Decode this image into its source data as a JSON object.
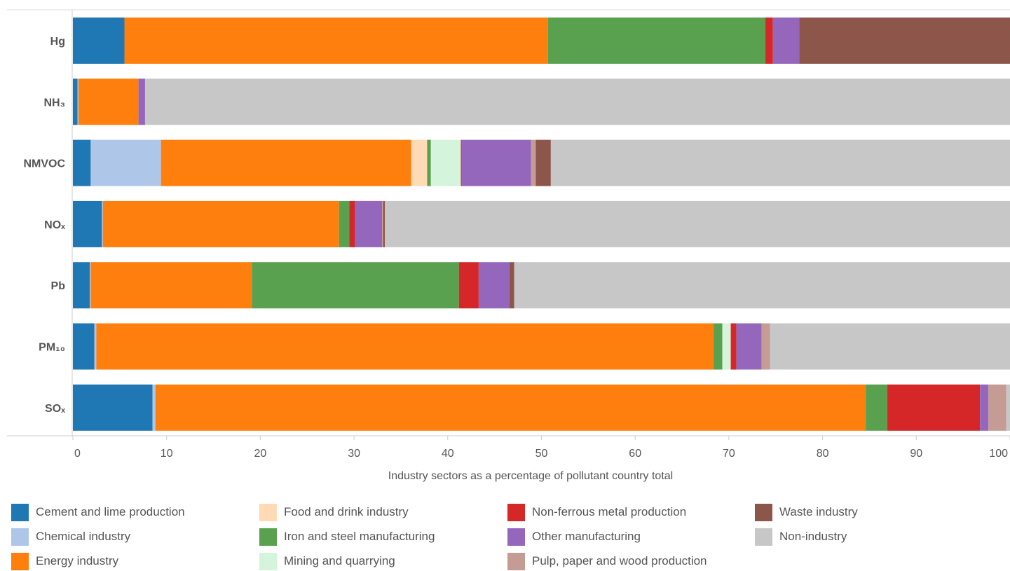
{
  "chart_data": {
    "type": "bar",
    "orientation": "horizontal",
    "stacked": true,
    "categories": [
      "Hg",
      "NH₃",
      "NMVOC",
      "NOₓ",
      "Pb",
      "PM₁₀",
      "SOₓ"
    ],
    "xlabel": "Industry sectors as a percentage of pollutant country total",
    "xlim": [
      0,
      100
    ],
    "xticks": [
      0,
      10,
      20,
      30,
      40,
      50,
      60,
      70,
      80,
      90,
      100
    ],
    "grid": false,
    "legend_position": "bottom",
    "series": [
      {
        "name": "Cement and lime production",
        "color": "#1f77b4",
        "values": [
          5.5,
          0.5,
          1.9,
          3.1,
          1.8,
          2.3,
          8.5
        ]
      },
      {
        "name": "Chemical industry",
        "color": "#aec7e8",
        "values": [
          0,
          0.1,
          7.5,
          0.1,
          0.1,
          0.2,
          0.3
        ]
      },
      {
        "name": "Energy industry",
        "color": "#ff7f0e",
        "values": [
          45.2,
          6.4,
          26.7,
          25.2,
          17.2,
          65.9,
          75.8
        ]
      },
      {
        "name": "Food and drink industry",
        "color": "#ffdab5",
        "values": [
          0,
          0,
          1.7,
          0,
          0,
          0,
          0
        ]
      },
      {
        "name": "Iron and steel manufacturing",
        "color": "#59a14f",
        "values": [
          23.2,
          0,
          0.4,
          1.1,
          22.1,
          0.9,
          2.3
        ]
      },
      {
        "name": "Mining and quarrying",
        "color": "#d4f4dc",
        "values": [
          0,
          0,
          3.2,
          0,
          0,
          0.9,
          0
        ]
      },
      {
        "name": "Non-ferrous metal production",
        "color": "#d62728",
        "values": [
          0.8,
          0,
          0.1,
          0.6,
          2.1,
          0.6,
          9.9
        ]
      },
      {
        "name": "Other manufacturing",
        "color": "#9467bd",
        "values": [
          2.8,
          0.7,
          7.4,
          2.9,
          3.3,
          2.7,
          0.9
        ]
      },
      {
        "name": "Pulp, paper and wood production",
        "color": "#c49c94",
        "values": [
          0,
          0,
          0.5,
          0.1,
          0,
          0.9,
          1.9
        ]
      },
      {
        "name": "Waste industry",
        "color": "#8c564b",
        "values": [
          22.5,
          0,
          1.6,
          0.2,
          0.5,
          0,
          0
        ]
      },
      {
        "name": "Non-industry",
        "color": "#c7c7c7",
        "values": [
          0,
          92.3,
          49.0,
          66.7,
          52.9,
          25.6,
          0.4
        ]
      }
    ]
  }
}
